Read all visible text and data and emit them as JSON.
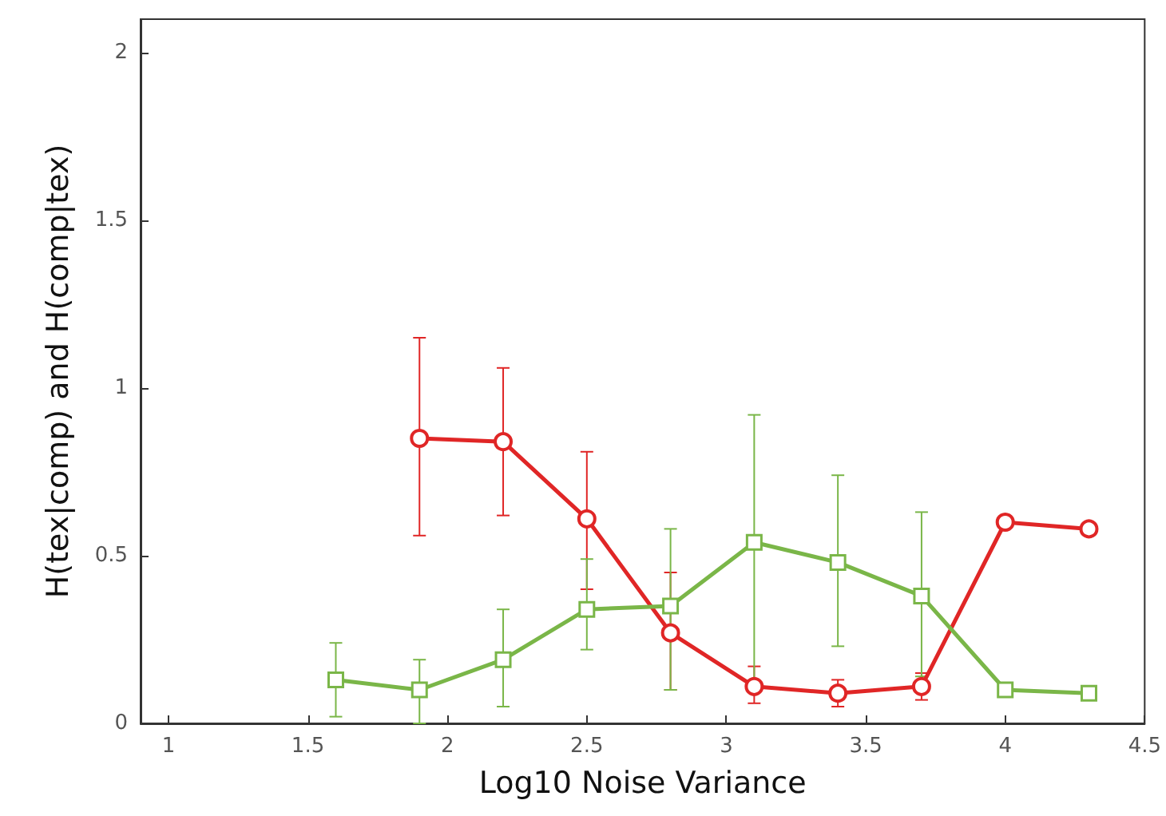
{
  "chart_data": {
    "type": "line",
    "xlabel": "Log10 Noise Variance",
    "ylabel": "H(tex|comp) and H(comp|tex)",
    "xlim": [
      0.9,
      4.5
    ],
    "xticks": [
      1,
      1.5,
      2,
      2.5,
      3,
      3.5,
      4,
      4.5
    ],
    "ylim": [
      0,
      2.1
    ],
    "yticks": [
      0,
      0.5,
      1,
      1.5,
      2
    ],
    "grid": false,
    "series": [
      {
        "color": "#e02626",
        "marker": "circle",
        "x": [
          1.9,
          2.2,
          2.5,
          2.8,
          3.1,
          3.4,
          3.7,
          4.0,
          4.3
        ],
        "values": [
          0.85,
          0.84,
          0.61,
          0.27,
          0.11,
          0.09,
          0.11,
          0.6,
          0.58
        ],
        "errors": [
          [
            0.56,
            1.15
          ],
          [
            0.62,
            1.06
          ],
          [
            0.4,
            0.81
          ],
          [
            0.1,
            0.45
          ],
          [
            0.06,
            0.17
          ],
          [
            0.05,
            0.13
          ],
          [
            0.07,
            0.15
          ],
          null,
          null
        ]
      },
      {
        "color": "#7ab648",
        "marker": "square",
        "x": [
          1.6,
          1.9,
          2.2,
          2.5,
          2.8,
          3.1,
          3.4,
          3.7,
          4.0,
          4.3
        ],
        "values": [
          0.13,
          0.1,
          0.19,
          0.34,
          0.35,
          0.54,
          0.48,
          0.38,
          0.1,
          0.09
        ],
        "errors": [
          [
            0.02,
            0.24
          ],
          [
            0,
            0.19
          ],
          [
            0.05,
            0.34
          ],
          [
            0.22,
            0.49
          ],
          [
            0.1,
            0.58
          ],
          [
            0.12,
            0.92
          ],
          [
            0.23,
            0.74
          ],
          [
            0.14,
            0.63
          ],
          null,
          null
        ]
      }
    ]
  }
}
